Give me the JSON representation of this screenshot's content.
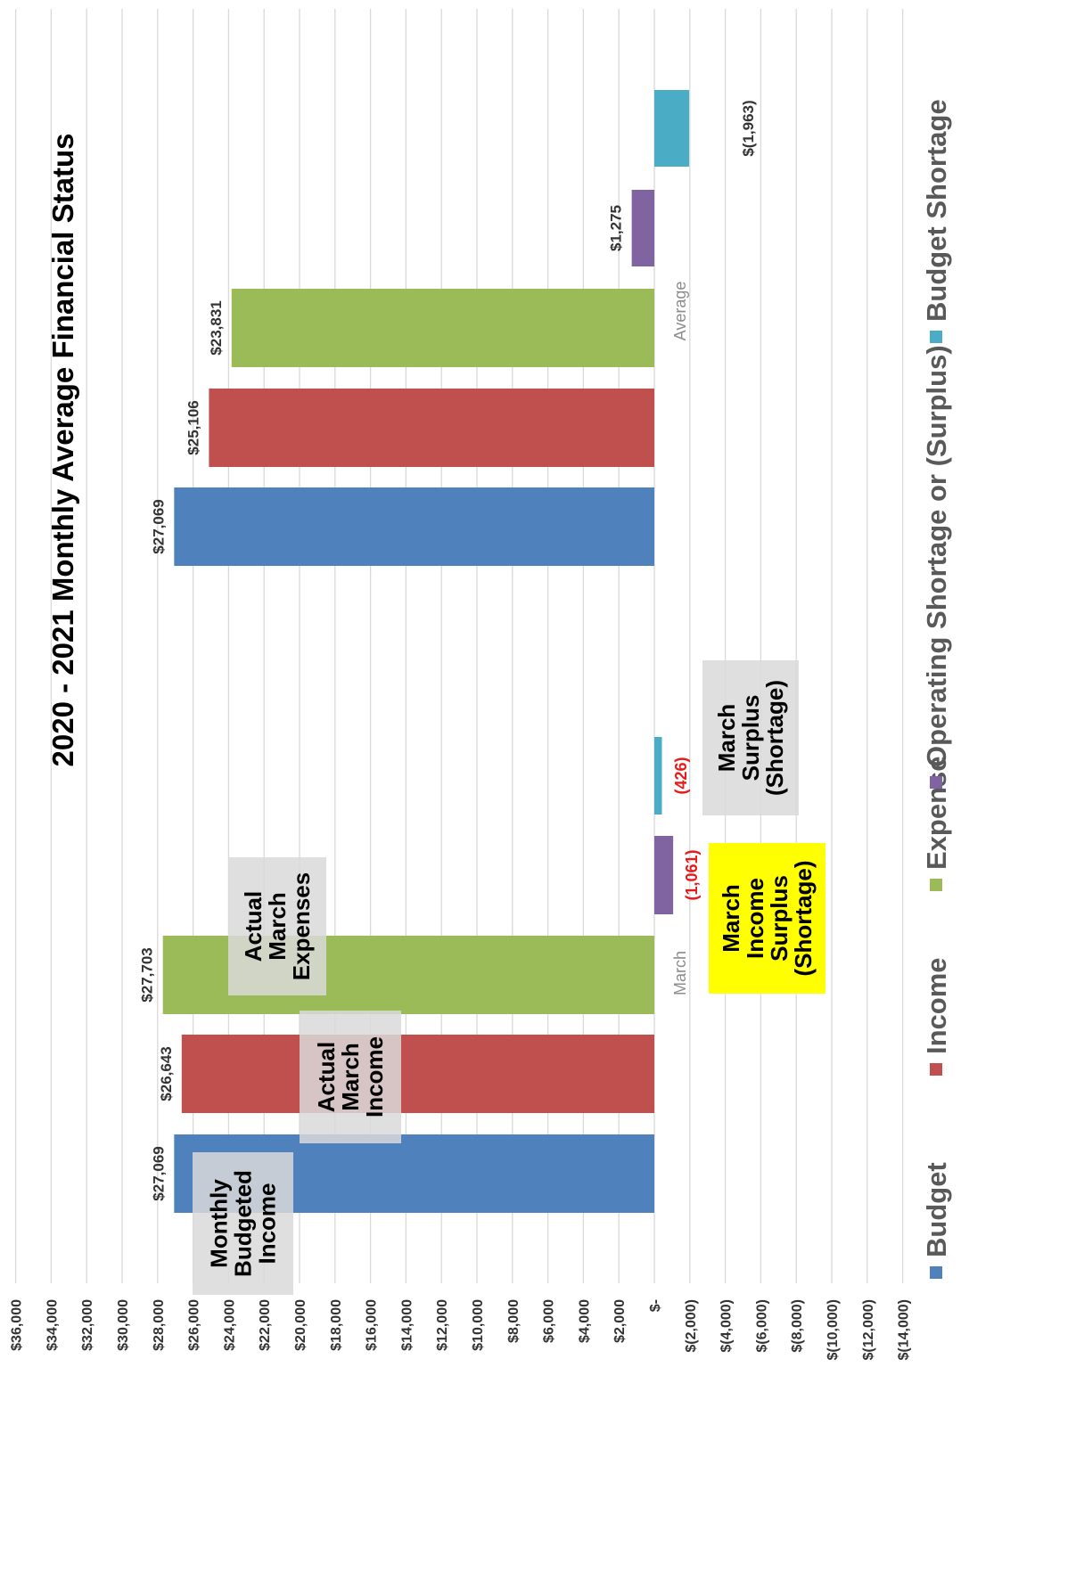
{
  "chart_data": {
    "type": "bar",
    "title": "2020 - 2021 Monthly Average Financial Status",
    "categories": [
      "March",
      "Average"
    ],
    "series": [
      {
        "name": "Budget",
        "color": "#4f81bd",
        "values": [
          27069,
          27069
        ],
        "labels": [
          "$27,069",
          "$27,069"
        ]
      },
      {
        "name": "Income",
        "color": "#c0504d",
        "values": [
          26643,
          25106
        ],
        "labels": [
          "$26,643",
          "$25,106"
        ]
      },
      {
        "name": "Expense",
        "color": "#9bbb59",
        "values": [
          27703,
          23831
        ],
        "labels": [
          "$27,703",
          "$23,831"
        ]
      },
      {
        "name": "Operating Shortage or  (Surplus)",
        "color": "#8064a2",
        "values": [
          -1061,
          1275
        ],
        "labels": [
          "(1,061)",
          "$1,275"
        ]
      },
      {
        "name": "Budget Shortage",
        "color": "#4bacc6",
        "values": [
          -426,
          -1963
        ],
        "labels": [
          "(426)",
          "$(1,963)"
        ]
      }
    ],
    "y_range": [
      -14000,
      36000
    ],
    "y_ticks": [
      {
        "value": 36000,
        "label": "$36,000"
      },
      {
        "value": 34000,
        "label": "$34,000"
      },
      {
        "value": 32000,
        "label": "$32,000"
      },
      {
        "value": 30000,
        "label": "$30,000"
      },
      {
        "value": 28000,
        "label": "$28,000"
      },
      {
        "value": 26000,
        "label": "$26,000"
      },
      {
        "value": 24000,
        "label": "$24,000"
      },
      {
        "value": 22000,
        "label": "$22,000"
      },
      {
        "value": 20000,
        "label": "$20,000"
      },
      {
        "value": 18000,
        "label": "$18,000"
      },
      {
        "value": 16000,
        "label": "$16,000"
      },
      {
        "value": 14000,
        "label": "$14,000"
      },
      {
        "value": 12000,
        "label": "$12,000"
      },
      {
        "value": 10000,
        "label": "$10,000"
      },
      {
        "value": 8000,
        "label": "$8,000"
      },
      {
        "value": 6000,
        "label": "$6,000"
      },
      {
        "value": 4000,
        "label": "$4,000"
      },
      {
        "value": 2000,
        "label": "$2,000"
      },
      {
        "value": 0,
        "label": "$-"
      },
      {
        "value": -2000,
        "label": "$(2,000)"
      },
      {
        "value": -4000,
        "label": "$(4,000)"
      },
      {
        "value": -6000,
        "label": "$(6,000)"
      },
      {
        "value": -8000,
        "label": "$(8,000)"
      },
      {
        "value": -10000,
        "label": "$(10,000)"
      },
      {
        "value": -12000,
        "label": "$(12,000)"
      },
      {
        "value": -14000,
        "label": "$(14,000)"
      }
    ],
    "grid": true,
    "orientation": "chart rotated 90 degrees counter-clockwise",
    "legend_position": "bottom",
    "annotations": [
      {
        "id": "monthly-budgeted-income",
        "lines": [
          "Monthly",
          "Budgeted",
          "Income"
        ],
        "fill": "#d9d9d9"
      },
      {
        "id": "actual-march-income",
        "lines": [
          "Actual",
          "March",
          "Income"
        ],
        "fill": "#d9d9d9"
      },
      {
        "id": "actual-march-expenses",
        "lines": [
          "Actual",
          "March",
          "Expenses"
        ],
        "fill": "#d9d9d9"
      },
      {
        "id": "march-income-surplus",
        "lines": [
          "March",
          "Income",
          "Surplus",
          "(Shortage)"
        ],
        "fill": "#ffff00"
      },
      {
        "id": "march-surplus",
        "lines": [
          "March",
          "Surplus",
          "(Shortage)"
        ],
        "fill": "#d9d9d9"
      }
    ]
  }
}
